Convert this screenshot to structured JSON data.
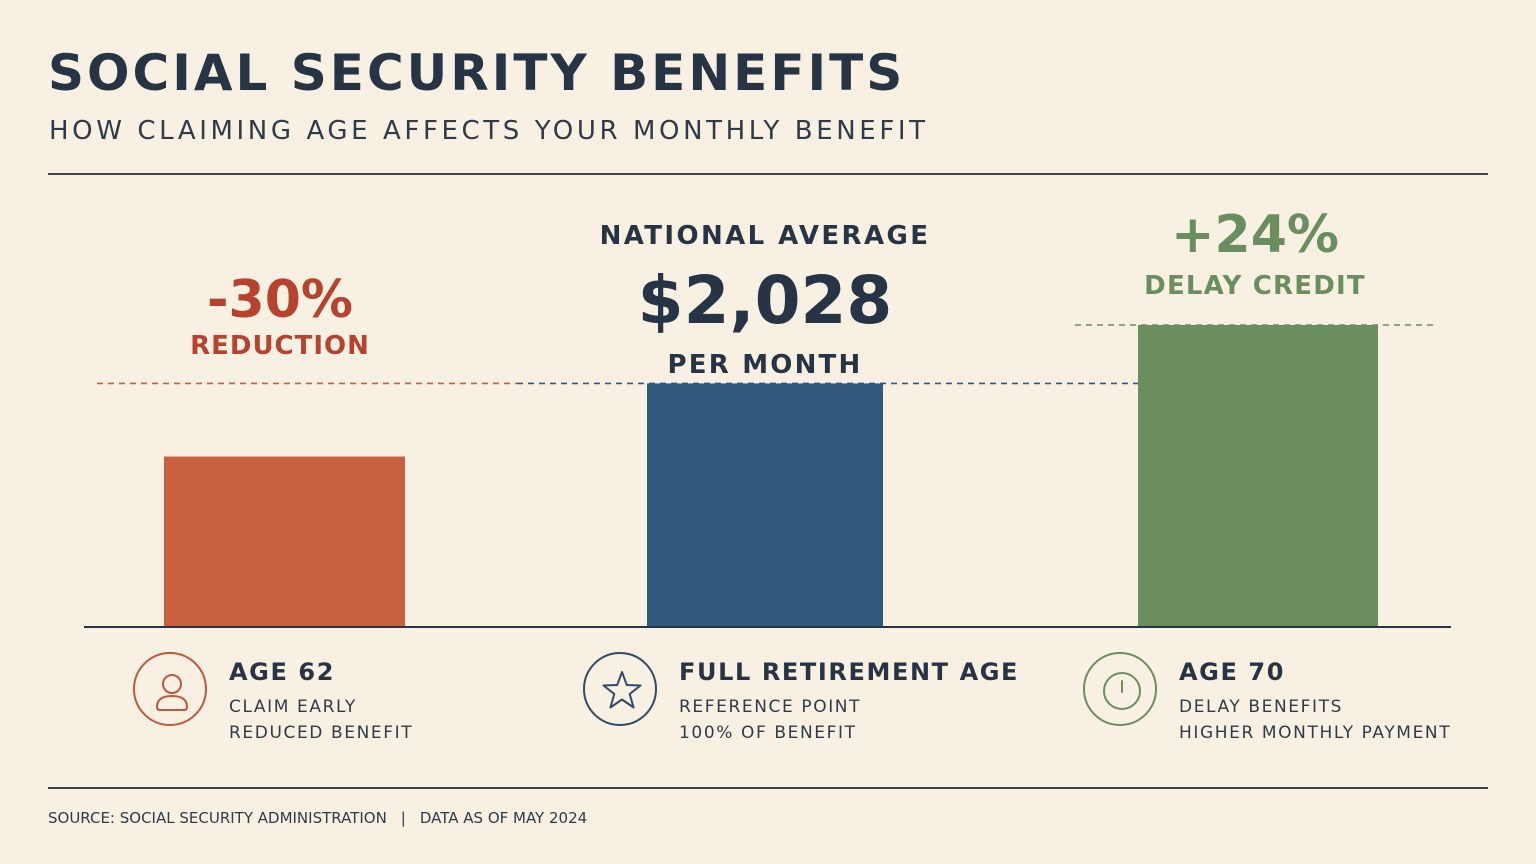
{
  "header": {
    "title": "SOCIAL SECURITY BENEFITS",
    "subtitle": "HOW CLAIMING AGE AFFECTS YOUR MONTHLY BENEFIT"
  },
  "annotations": {
    "left": {
      "value": "-30%",
      "label": "REDUCTION",
      "color": "#b5432d"
    },
    "middle": {
      "top": "NATIONAL AVERAGE",
      "value": "$2,028",
      "label": "PER MONTH",
      "color": "#263445"
    },
    "right": {
      "value": "+24%",
      "label": "DELAY CREDIT",
      "color": "#6b8e5e"
    }
  },
  "categories_info": [
    {
      "icon": "person-icon",
      "heading": "AGE 62",
      "line1": "CLAIM EARLY",
      "line2": "REDUCED BENEFIT"
    },
    {
      "icon": "star-icon",
      "heading": "FULL RETIREMENT AGE",
      "line1": "REFERENCE POINT",
      "line2": "100% OF BENEFIT"
    },
    {
      "icon": "clock-icon",
      "heading": "AGE 70",
      "line1": "DELAY BENEFITS",
      "line2": "HIGHER MONTHLY PAYMENT"
    }
  ],
  "footer": {
    "source": "SOURCE: SOCIAL SECURITY ADMINISTRATION",
    "separator": "|",
    "date": "DATA AS OF MAY 2024"
  },
  "chart_data": {
    "type": "bar",
    "categories": [
      "AGE 62",
      "FULL RETIREMENT AGE",
      "AGE 70"
    ],
    "values": [
      70,
      100,
      124
    ],
    "unit": "% of full benefit",
    "colors": [
      "#c8613f",
      "#33587e",
      "#6b8e5e"
    ],
    "reference_lines": [
      {
        "value": 100,
        "color": "#c8613f",
        "style": "dashed"
      },
      {
        "value": 100,
        "color": "#33587e",
        "style": "dashed"
      },
      {
        "value": 124,
        "color": "#6b8e5e",
        "style": "dashed"
      }
    ],
    "ylim": [
      0,
      124
    ],
    "grid": false,
    "legend": "none"
  }
}
